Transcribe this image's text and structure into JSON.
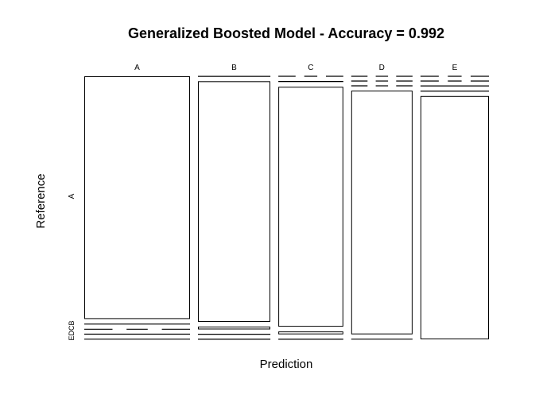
{
  "chart_data": {
    "type": "mosaic",
    "title": "Generalized Boosted Model - Accuracy = 0.992",
    "xlabel": "Prediction",
    "ylabel": "Reference",
    "x_categories": [
      "A",
      "B",
      "C",
      "D",
      "E"
    ],
    "y_categories": [
      "A",
      "B",
      "C",
      "D",
      "E"
    ],
    "y_tick_labels": {
      "A": "A",
      "minor": "EDCB"
    },
    "column_totals": [
      1675,
      1146,
      1029,
      971,
      1084
    ],
    "cells": [
      {
        "prediction": "A",
        "counts": {
          "A": 1666,
          "B": 5,
          "C": 0,
          "D": 2,
          "E": 2
        }
      },
      {
        "prediction": "B",
        "counts": {
          "A": 1,
          "B": 1130,
          "C": 13,
          "D": 1,
          "E": 1
        }
      },
      {
        "prediction": "C",
        "counts": {
          "A": 0,
          "B": 4,
          "C": 1012,
          "D": 12,
          "E": 1
        }
      },
      {
        "prediction": "D",
        "counts": {
          "A": 0,
          "B": 0,
          "C": 0,
          "D": 970,
          "E": 1
        }
      },
      {
        "prediction": "E",
        "counts": {
          "A": 0,
          "B": 0,
          "C": 1,
          "D": 2,
          "E": 1081
        }
      }
    ]
  }
}
